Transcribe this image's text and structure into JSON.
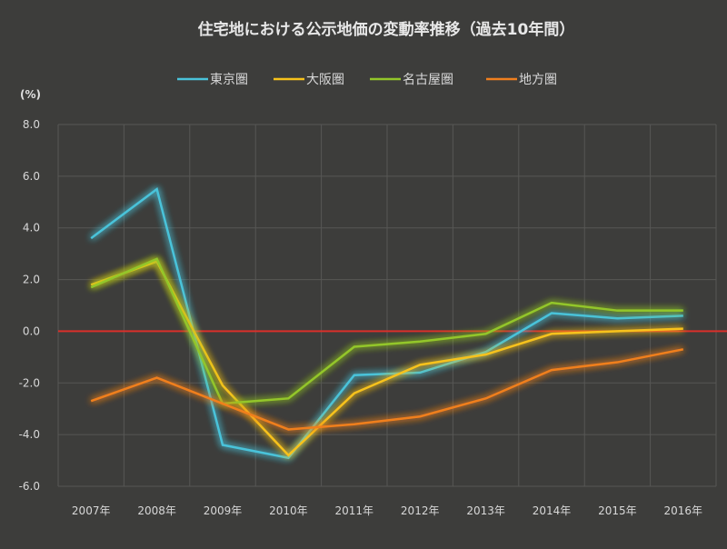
{
  "chart_data": {
    "type": "line",
    "title": "住宅地における公示地価の変動率推移（過去10年間）",
    "ylabel": "(%)",
    "xlabel": "",
    "categories": [
      "2007年",
      "2008年",
      "2009年",
      "2010年",
      "2011年",
      "2012年",
      "2013年",
      "2014年",
      "2015年",
      "2016年"
    ],
    "ylim": [
      -6.0,
      8.0
    ],
    "yticks": [
      "8.0",
      "6.0",
      "4.0",
      "2.0",
      "0.0",
      "-2.0",
      "-4.0",
      "-6.0"
    ],
    "grid": true,
    "legend_position": "top",
    "zero_line_color": "#d9302a",
    "series": [
      {
        "name": "東京圏",
        "color": "#4ac3da",
        "values": [
          3.6,
          5.5,
          -4.4,
          -4.9,
          -1.7,
          -1.6,
          -0.8,
          0.7,
          0.5,
          0.6
        ]
      },
      {
        "name": "大阪圏",
        "color": "#f7c21b",
        "values": [
          1.8,
          2.7,
          -2.1,
          -4.8,
          -2.4,
          -1.3,
          -0.9,
          -0.1,
          0.0,
          0.1
        ]
      },
      {
        "name": "名古屋圏",
        "color": "#93c62a",
        "values": [
          1.7,
          2.8,
          -2.8,
          -2.6,
          -0.6,
          -0.4,
          -0.1,
          1.1,
          0.8,
          0.8
        ]
      },
      {
        "name": "地方圏",
        "color": "#f07f1e",
        "values": [
          -2.7,
          -1.8,
          -2.8,
          -3.8,
          -3.6,
          -3.3,
          -2.6,
          -1.5,
          -1.2,
          -0.7
        ]
      }
    ]
  }
}
